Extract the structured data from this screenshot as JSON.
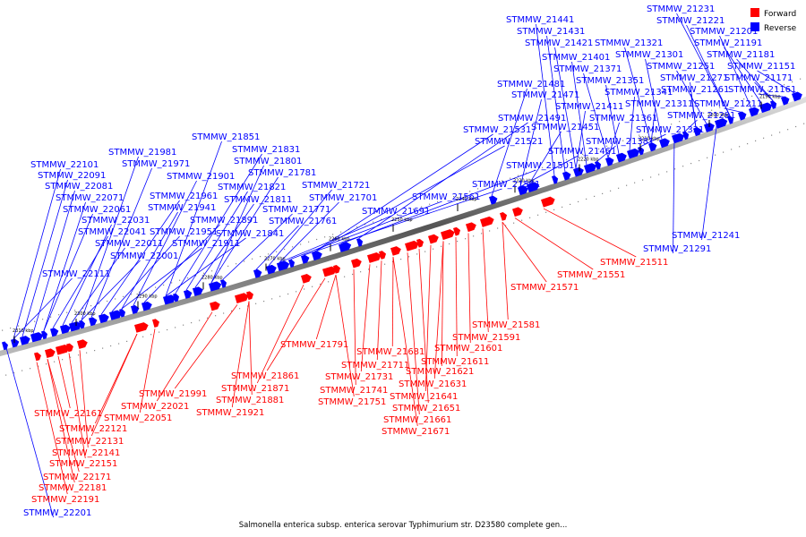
{
  "caption": "Salmonella enterica subsp. enterica serovar Typhimurium str. D23580 complete gen...",
  "legend": [
    {
      "label": "Forward",
      "color": "#ff0000"
    },
    {
      "label": "Reverse",
      "color": "#0000ff"
    }
  ],
  "ticks": [
    "2190 kbp",
    "2200 kbp",
    "2210 kbp",
    "2220 kbp",
    "2230 kbp",
    "2240 kbp",
    "2250 kbp",
    "2260 kbp",
    "2270 kbp",
    "2280 kbp",
    "2290 kbp",
    "2300 kbp",
    "2310 kbp"
  ],
  "reverse_genes": [
    "STMMW_21151",
    "STMMW_21161",
    "STMMW_21171",
    "STMMW_21181",
    "STMMW_21191",
    "STMMW_21201",
    "STMMW_21211",
    "STMMW_21221",
    "STMMW_21231",
    "STMMW_21241",
    "STMMW_21251",
    "STMMW_21261",
    "STMMW_21271",
    "STMMW_21281",
    "STMMW_21291",
    "STMMW_21301",
    "STMMW_21311",
    "STMMW_21321",
    "STMMW_21331",
    "STMMW_21341",
    "STMMW_21351",
    "STMMW_21361",
    "STMMW_21371",
    "STMMW_21381",
    "STMMW_21401",
    "STMMW_21411",
    "STMMW_21421",
    "STMMW_21431",
    "STMMW_21441",
    "STMMW_21451",
    "STMMW_21461",
    "STMMW_21471",
    "STMMW_21481",
    "STMMW_21491",
    "STMMW_21501",
    "STMMW_21521",
    "STMMW_21531",
    "STMMW_21541",
    "STMMW_21561",
    "STMMW_21691",
    "STMMW_21701",
    "STMMW_21721",
    "STMMW_21761",
    "STMMW_21771",
    "STMMW_21781",
    "STMMW_21801",
    "STMMW_21811",
    "STMMW_21821",
    "STMMW_21831",
    "STMMW_21841",
    "STMMW_21851",
    "STMMW_21891",
    "STMMW_21901",
    "STMMW_21911",
    "STMMW_21941",
    "STMMW_21951",
    "STMMW_21961",
    "STMMW_21971",
    "STMMW_21981",
    "STMMW_22001",
    "STMMW_22011",
    "STMMW_22031",
    "STMMW_22041",
    "STMMW_22061",
    "STMMW_22071",
    "STMMW_22081",
    "STMMW_22091",
    "STMMW_22101",
    "STMMW_22111",
    "STMMW_22201"
  ],
  "forward_genes": [
    "STMMW_21511",
    "STMMW_21551",
    "STMMW_21571",
    "STMMW_21581",
    "STMMW_21591",
    "STMMW_21601",
    "STMMW_21611",
    "STMMW_21621",
    "STMMW_21631",
    "STMMW_21641",
    "STMMW_21651",
    "STMMW_21661",
    "STMMW_21671",
    "STMMW_21681",
    "STMMW_21711",
    "STMMW_21731",
    "STMMW_21741",
    "STMMW_21751",
    "STMMW_21791",
    "STMMW_21861",
    "STMMW_21871",
    "STMMW_21881",
    "STMMW_21921",
    "STMMW_21991",
    "STMMW_22021",
    "STMMW_22051",
    "STMMW_22121",
    "STMMW_22131",
    "STMMW_22141",
    "STMMW_22151",
    "STMMW_22161",
    "STMMW_22171",
    "STMMW_22181",
    "STMMW_22191"
  ]
}
